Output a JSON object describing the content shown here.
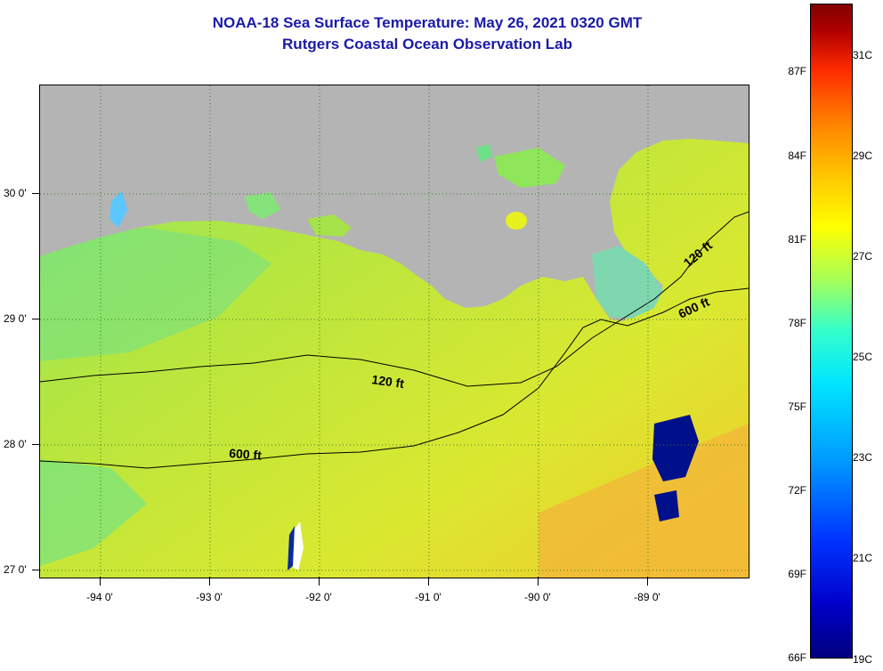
{
  "title": "NOAA-18 Sea Surface Temperature:  May 26, 2021 0320 GMT",
  "subtitle": "Rutgers Coastal Ocean Observation Lab",
  "map": {
    "lat_labels": [
      "30 0'",
      "29 0'",
      "28 0'",
      "27 0'"
    ],
    "lon_labels": [
      "-94 0'",
      "-93 0'",
      "-92 0'",
      "-91 0'",
      "-90 0'",
      "-89 0'"
    ],
    "contour_labels": [
      "120 ft",
      "600 ft",
      "120 ft",
      "600 ft"
    ],
    "land_color": "#b4b4b4"
  },
  "colorbar": {
    "fahrenheit_labels": [
      "87F",
      "84F",
      "81F",
      "78F",
      "75F",
      "72F",
      "69F",
      "66F"
    ],
    "celsius_labels": [
      "31C",
      "29C",
      "27C",
      "25C",
      "23C",
      "21C",
      "19C"
    ],
    "range_c": [
      19,
      32
    ],
    "range_f": [
      66,
      90
    ]
  }
}
